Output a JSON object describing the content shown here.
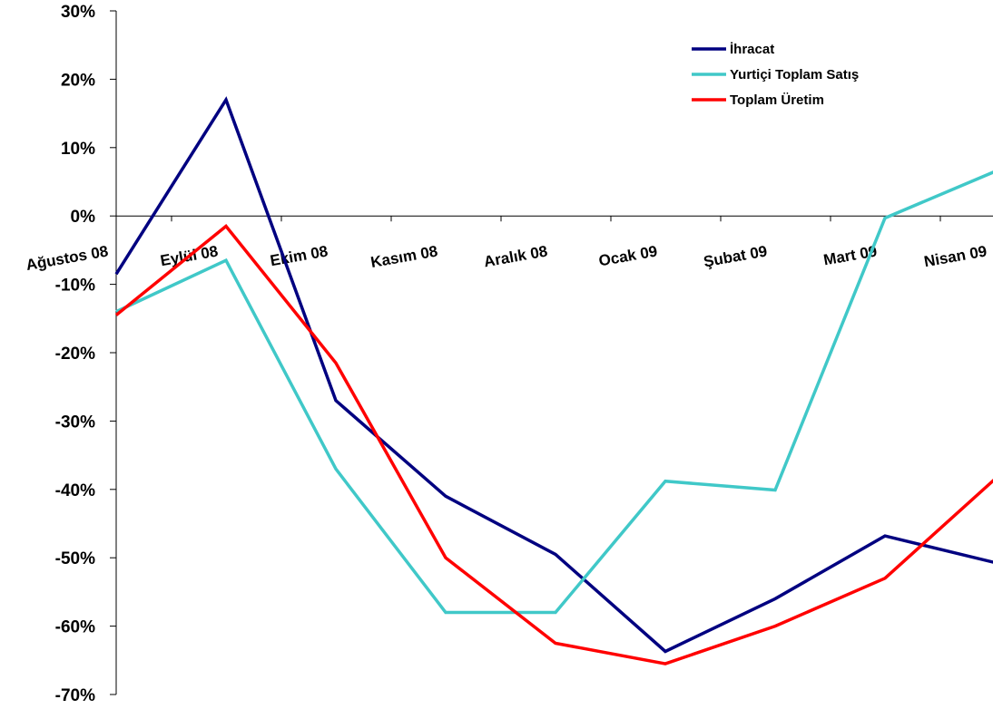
{
  "chart_data": {
    "type": "line",
    "categories": [
      "Ağustos 08",
      "Eylül 08",
      "Ekim 08",
      "Kasım 08",
      "Aralık 08",
      "Ocak 09",
      "Şubat 09",
      "Mart 09",
      "Nisan 09"
    ],
    "x_tick_labels": [
      "Ağustos 08",
      "Eylül 08",
      "Ekim 08",
      "Kasım 08",
      "Aralık 08",
      "Ocak 09",
      "Şubat 09",
      "Mart 09",
      "Nisan 09"
    ],
    "y_tick_labels": [
      "30%",
      "20%",
      "10%",
      "0%",
      "-10%",
      "-20%",
      "-30%",
      "-40%",
      "-50%",
      "-60%",
      "-70%"
    ],
    "ylim": [
      -70,
      30
    ],
    "y_ticks": [
      30,
      20,
      10,
      0,
      -10,
      -20,
      -30,
      -40,
      -50,
      -60,
      -70
    ],
    "grid": false,
    "legend_position": "top-right",
    "series": [
      {
        "name": "İhracat",
        "color": "#000080",
        "values": [
          -8.5,
          17.0,
          -27.0,
          -41.0,
          -49.5,
          -63.7,
          -56.0,
          -46.8,
          -50.7
        ]
      },
      {
        "name": "Yurtiçi Toplam Satış",
        "color": "#40C8C8",
        "values": [
          -14.0,
          -6.5,
          -37.0,
          -58.0,
          -58.0,
          -38.8,
          -40.1,
          -0.3,
          6.5
        ]
      },
      {
        "name": "Toplam Üretim",
        "color": "#FF0000",
        "values": [
          -14.5,
          -1.5,
          -21.5,
          -50.0,
          -62.5,
          -65.5,
          -60.0,
          -53.0,
          -38.5
        ]
      }
    ]
  }
}
